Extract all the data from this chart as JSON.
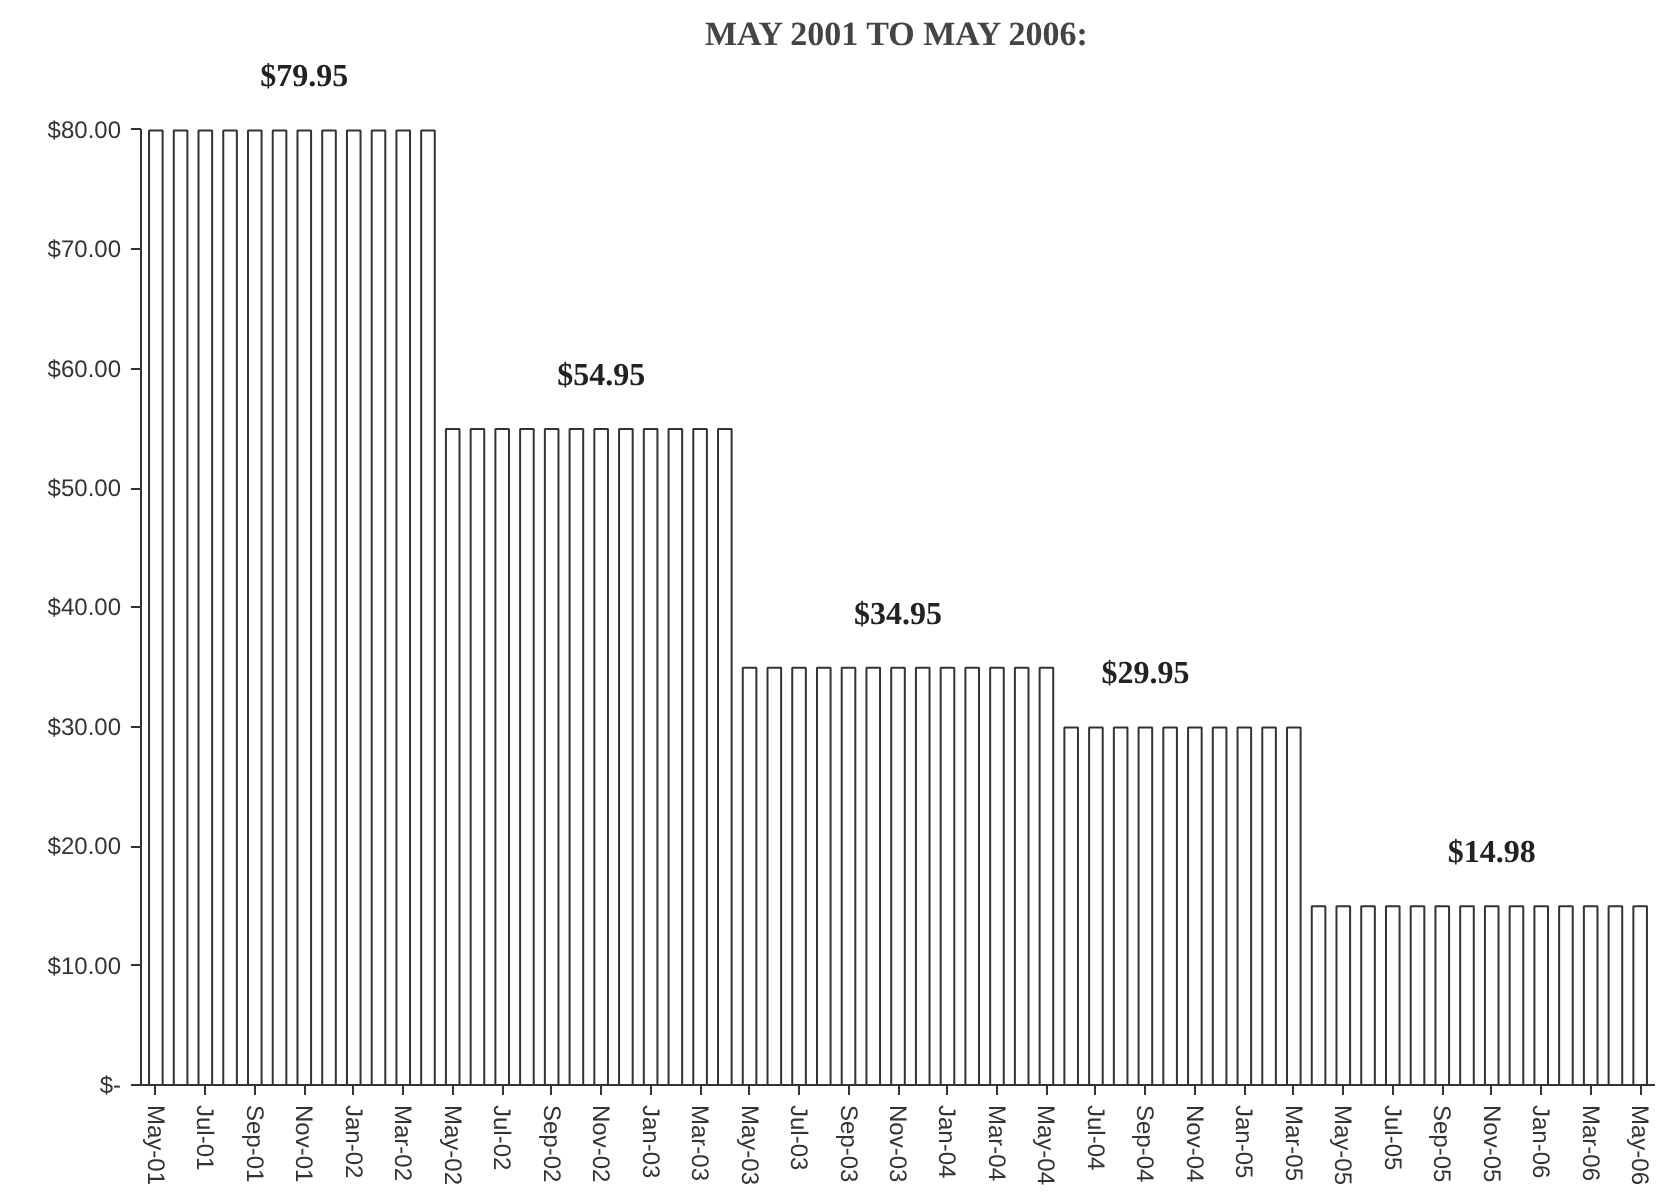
{
  "chart_data": {
    "type": "bar",
    "title": "MAY 2001 TO MAY 2006:",
    "categories": [
      "May-01",
      null,
      "Jul-01",
      null,
      "Sep-01",
      null,
      "Nov-01",
      null,
      "Jan-02",
      null,
      "Mar-02",
      null,
      "May-02",
      null,
      "Jul-02",
      null,
      "Sep-02",
      null,
      "Nov-02",
      null,
      "Jan-03",
      null,
      "Mar-03",
      null,
      "May-03",
      null,
      "Jul-03",
      null,
      "Sep-03",
      null,
      "Nov-03",
      null,
      "Jan-04",
      null,
      "Mar-04",
      null,
      "May-04",
      null,
      "Jul-04",
      null,
      "Sep-04",
      null,
      "Nov-04",
      null,
      "Jan-05",
      null,
      "Mar-05",
      null,
      "May-05",
      null,
      "Jul-05",
      null,
      "Sep-05",
      null,
      "Nov-05",
      null,
      "Jan-06",
      null,
      "Mar-06",
      null,
      "May-06"
    ],
    "values": [
      79.95,
      79.95,
      79.95,
      79.95,
      79.95,
      79.95,
      79.95,
      79.95,
      79.95,
      79.95,
      79.95,
      79.95,
      54.95,
      54.95,
      54.95,
      54.95,
      54.95,
      54.95,
      54.95,
      54.95,
      54.95,
      54.95,
      54.95,
      54.95,
      34.95,
      34.95,
      34.95,
      34.95,
      34.95,
      34.95,
      34.95,
      34.95,
      34.95,
      34.95,
      34.95,
      34.95,
      34.95,
      29.95,
      29.95,
      29.95,
      29.95,
      29.95,
      29.95,
      29.95,
      29.95,
      29.95,
      29.95,
      14.98,
      14.98,
      14.98,
      14.98,
      14.98,
      14.98,
      14.98,
      14.98,
      14.98,
      14.98,
      14.98,
      14.98,
      14.98,
      14.98
    ],
    "color": "#ffffff",
    "ylim": [
      0,
      80
    ],
    "yticks": [
      {
        "value": 0,
        "label": "$-"
      },
      {
        "value": 10,
        "label": "$10.00"
      },
      {
        "value": 20,
        "label": "$20.00"
      },
      {
        "value": 30,
        "label": "$30.00"
      },
      {
        "value": 40,
        "label": "$40.00"
      },
      {
        "value": 50,
        "label": "$50.00"
      },
      {
        "value": 60,
        "label": "$60.00"
      },
      {
        "value": 70,
        "label": "$70.00"
      },
      {
        "value": 80,
        "label": "$80.00"
      }
    ],
    "annotations": [
      {
        "text": "$79.95",
        "x": "Nov-01",
        "y": 79.95
      },
      {
        "text": "$54.95",
        "x": "Nov-02",
        "y": 54.95
      },
      {
        "text": "$34.95",
        "x": "Nov-03",
        "y": 34.95
      },
      {
        "text": "$29.95",
        "x": "Sep-04",
        "y": 29.95
      },
      {
        "text": "$14.98",
        "x": "Nov-05",
        "y": 14.98
      }
    ],
    "grid": false
  }
}
